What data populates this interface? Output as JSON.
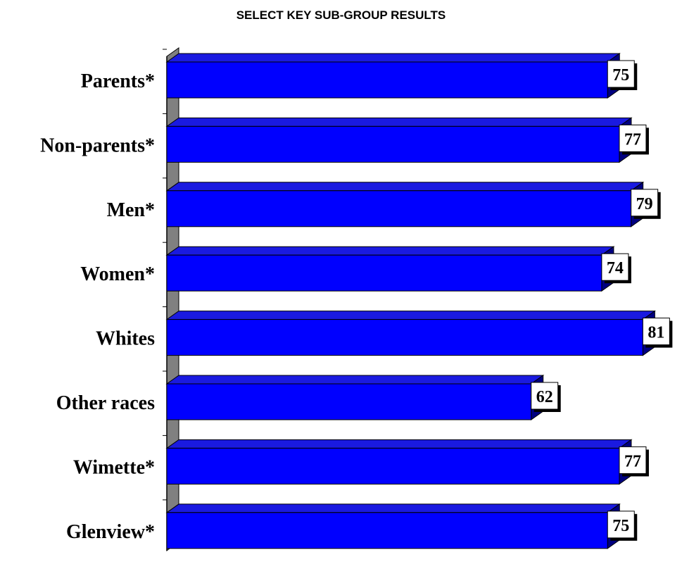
{
  "chart_data": {
    "type": "bar",
    "orientation": "horizontal",
    "title": "SELECT KEY SUB-GROUP RESULTS",
    "categories": [
      "Parents*",
      "Non-parents*",
      "Men*",
      "Women*",
      "Whites",
      "Other races",
      "Wimette*",
      "Glenview*"
    ],
    "values": [
      75,
      77,
      79,
      74,
      81,
      62,
      77,
      75
    ],
    "xlim": [
      0,
      100
    ],
    "grid": false,
    "legend": "none",
    "colors": {
      "bar_front": "#0000ff",
      "bar_top": "#1a1ae0",
      "bar_side": "#000080",
      "wall": "#808080"
    }
  }
}
